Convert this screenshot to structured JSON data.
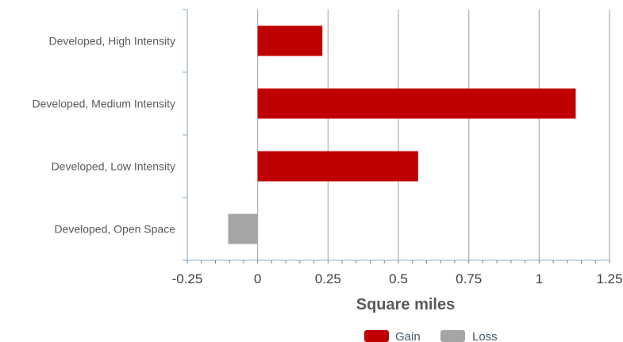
{
  "chart_data": {
    "type": "bar",
    "orientation": "horizontal",
    "categories": [
      "Developed, High Intensity",
      "Developed, Medium Intensity",
      "Developed, Low Intensity",
      "Developed, Open Space"
    ],
    "series": [
      {
        "name": "Gain",
        "color": "#c00000",
        "values": [
          0.23,
          1.13,
          0.57,
          null
        ]
      },
      {
        "name": "Loss",
        "color": "#a5a5a5",
        "values": [
          null,
          null,
          null,
          -0.105
        ]
      }
    ],
    "xlabel": "Square miles",
    "ylabel": "",
    "xlim": [
      -0.25,
      1.25
    ],
    "xticks": [
      -0.25,
      0,
      0.25,
      0.5,
      0.75,
      1,
      1.25
    ],
    "xtick_labels": [
      "-0.25",
      "0",
      "0.25",
      "0.5",
      "0.75",
      "1",
      "1.25"
    ],
    "grid": true,
    "legend_position": "bottom"
  }
}
